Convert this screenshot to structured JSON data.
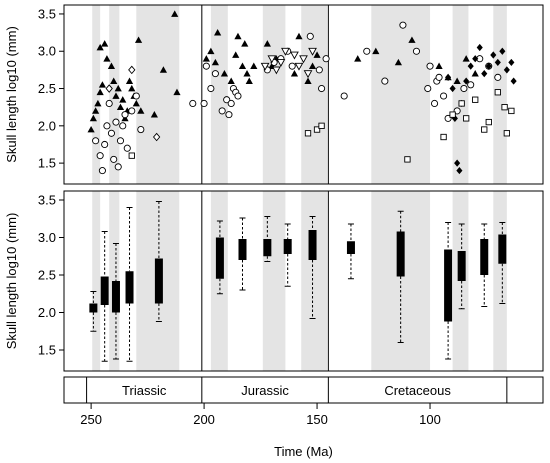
{
  "chart_data": [
    {
      "type": "scatter",
      "ylabel": "Skull length log10 (mm)",
      "xlim": [
        262,
        50
      ],
      "ylim": [
        1.22,
        3.62
      ],
      "yticks": [
        "1.5",
        "2.0",
        "2.5",
        "3.0",
        "3.5"
      ],
      "shaded_intervals": [
        [
          249.5,
          246
        ],
        [
          242,
          237.5
        ],
        [
          230,
          211
        ],
        [
          197,
          189.5
        ],
        [
          174,
          164
        ],
        [
          157,
          145.5
        ],
        [
          126,
          100
        ],
        [
          90,
          83
        ],
        [
          72,
          66
        ]
      ],
      "series": [
        {
          "symbol": "triangle",
          "points": [
            [
              250,
              1.95
            ],
            [
              249,
              2.1
            ],
            [
              248,
              2.2
            ],
            [
              247,
              2.3
            ],
            [
              246,
              2.45
            ],
            [
              245,
              2.55
            ],
            [
              246,
              3.05
            ],
            [
              244,
              3.1
            ],
            [
              243,
              2.9
            ],
            [
              241,
              2.8
            ],
            [
              240,
              2.6
            ],
            [
              239,
              2.4
            ],
            [
              238,
              2.5
            ],
            [
              237,
              2.25
            ],
            [
              236,
              2.35
            ],
            [
              235,
              2.1
            ],
            [
              234,
              2.2
            ],
            [
              233,
              2.6
            ],
            [
              232,
              2.5
            ],
            [
              231,
              2.4
            ],
            [
              230,
              2.3
            ],
            [
              229,
              3.15
            ],
            [
              228,
              2.2
            ],
            [
              222,
              2.15
            ],
            [
              218,
              2.75
            ],
            [
              213,
              3.5
            ],
            [
              212,
              2.45
            ],
            [
              199,
              2.9
            ],
            [
              197,
              3.0
            ],
            [
              195,
              2.85
            ],
            [
              194,
              3.25
            ],
            [
              191,
              2.7
            ],
            [
              188,
              2.6
            ],
            [
              186,
              2.95
            ],
            [
              185,
              3.2
            ],
            [
              183,
              2.8
            ],
            [
              182,
              3.1
            ],
            [
              181,
              2.7
            ],
            [
              180,
              2.6
            ],
            [
              178,
              2.8
            ],
            [
              172,
              3.1
            ],
            [
              170,
              2.8
            ],
            [
              168,
              2.9
            ],
            [
              160,
              2.7
            ],
            [
              158,
              3.2
            ],
            [
              154,
              2.6
            ],
            [
              152,
              2.8
            ],
            [
              150,
              2.95
            ],
            [
              132,
              2.9
            ],
            [
              124,
              3.0
            ],
            [
              114,
              2.85
            ],
            [
              108,
              3.15
            ],
            [
              96,
              2.8
            ],
            [
              92,
              2.65
            ],
            [
              88,
              2.6
            ],
            [
              84,
              2.9
            ],
            [
              80,
              2.7
            ]
          ]
        },
        {
          "symbol": "circle",
          "points": [
            [
              248,
              1.8
            ],
            [
              246,
              1.6
            ],
            [
              245,
              1.4
            ],
            [
              244,
              1.75
            ],
            [
              243,
              2.0
            ],
            [
              242,
              2.3
            ],
            [
              241,
              1.9
            ],
            [
              240,
              1.55
            ],
            [
              239,
              2.05
            ],
            [
              238,
              1.45
            ],
            [
              237,
              1.8
            ],
            [
              236,
              2.0
            ],
            [
              235,
              2.15
            ],
            [
              234,
              1.7
            ],
            [
              232,
              2.2
            ],
            [
              230,
              2.4
            ],
            [
              228,
              1.95
            ],
            [
              205,
              2.3
            ],
            [
              200,
              2.3
            ],
            [
              199,
              2.8
            ],
            [
              197,
              2.5
            ],
            [
              195,
              2.7
            ],
            [
              192,
              2.2
            ],
            [
              190,
              2.35
            ],
            [
              189,
              2.15
            ],
            [
              188,
              2.3
            ],
            [
              187,
              2.5
            ],
            [
              186,
              2.45
            ],
            [
              185,
              2.4
            ],
            [
              172,
              2.75
            ],
            [
              169,
              2.85
            ],
            [
              166,
              2.9
            ],
            [
              163,
              3.0
            ],
            [
              161,
              2.8
            ],
            [
              153,
              3.2
            ],
            [
              149,
              2.75
            ],
            [
              148,
              2.5
            ],
            [
              146,
              2.9
            ],
            [
              138,
              2.4
            ],
            [
              128,
              3.0
            ],
            [
              120,
              2.6
            ],
            [
              112,
              3.35
            ],
            [
              106,
              3.0
            ],
            [
              101,
              2.5
            ],
            [
              100,
              2.8
            ],
            [
              98,
              2.3
            ],
            [
              97,
              2.6
            ],
            [
              96,
              2.65
            ],
            [
              94,
              2.4
            ],
            [
              92,
              2.1
            ],
            [
              88,
              2.2
            ],
            [
              85,
              2.5
            ],
            [
              82,
              2.55
            ],
            [
              78,
              2.9
            ],
            [
              74,
              2.8
            ],
            [
              70,
              2.65
            ]
          ]
        },
        {
          "symbol": "triangle-down",
          "points": [
            [
              173,
              2.8
            ],
            [
              170,
              2.9
            ],
            [
              168,
              2.75
            ],
            [
              166,
              2.85
            ],
            [
              164,
              3.0
            ],
            [
              160,
              2.95
            ],
            [
              158,
              2.8
            ],
            [
              156,
              2.9
            ],
            [
              154,
              2.7
            ],
            [
              152,
              3.0
            ]
          ]
        },
        {
          "symbol": "diamond-filled",
          "points": [
            [
              92,
              2.65
            ],
            [
              90,
              2.5
            ],
            [
              89,
              2.1
            ],
            [
              88,
              1.5
            ],
            [
              87,
              1.4
            ],
            [
              86,
              2.3
            ],
            [
              84,
              2.6
            ],
            [
              82,
              2.8
            ],
            [
              80,
              2.9
            ],
            [
              78,
              3.05
            ],
            [
              76,
              2.7
            ],
            [
              74,
              2.8
            ],
            [
              72,
              2.95
            ],
            [
              70,
              2.85
            ],
            [
              68,
              3.0
            ],
            [
              66,
              2.75
            ],
            [
              64,
              2.85
            ],
            [
              63,
              2.6
            ]
          ]
        },
        {
          "symbol": "diamond",
          "points": [
            [
              242,
              2.5
            ],
            [
              232,
              2.75
            ],
            [
              221,
              1.85
            ]
          ]
        },
        {
          "symbol": "square",
          "points": [
            [
              232,
              1.6
            ],
            [
              154,
              1.9
            ],
            [
              150,
              1.95
            ],
            [
              148,
              2.0
            ],
            [
              110,
              1.55
            ],
            [
              94,
              1.85
            ],
            [
              90,
              2.15
            ],
            [
              86,
              2.3
            ],
            [
              84,
              2.1
            ],
            [
              80,
              2.35
            ],
            [
              76,
              1.95
            ],
            [
              74,
              2.05
            ],
            [
              70,
              2.45
            ],
            [
              67,
              2.25
            ],
            [
              66,
              1.9
            ],
            [
              64,
              2.2
            ]
          ]
        }
      ]
    },
    {
      "type": "box",
      "ylabel": "Skull length log10 (mm)",
      "xlim": [
        262,
        50
      ],
      "ylim": [
        1.22,
        3.62
      ],
      "yticks": [
        "1.5",
        "2.0",
        "2.5",
        "3.0",
        "3.5"
      ],
      "shaded_intervals": [
        [
          249.5,
          246
        ],
        [
          242,
          237.5
        ],
        [
          230,
          211
        ],
        [
          197,
          189.5
        ],
        [
          174,
          164
        ],
        [
          157,
          145.5
        ],
        [
          126,
          100
        ],
        [
          90,
          83
        ],
        [
          72,
          66
        ]
      ],
      "boxes": [
        {
          "x": 249,
          "min": 1.75,
          "q1": 2.0,
          "q3": 2.12,
          "max": 2.28
        },
        {
          "x": 244,
          "min": 1.35,
          "q1": 2.1,
          "q3": 2.48,
          "max": 3.08
        },
        {
          "x": 239,
          "min": 1.38,
          "q1": 2.0,
          "q3": 2.42,
          "max": 2.92
        },
        {
          "x": 233,
          "min": 1.35,
          "q1": 2.12,
          "q3": 2.55,
          "max": 3.4
        },
        {
          "x": 220,
          "min": 1.88,
          "q1": 2.12,
          "q3": 2.72,
          "max": 3.48
        },
        {
          "x": 193,
          "min": 2.25,
          "q1": 2.45,
          "q3": 3.0,
          "max": 3.22
        },
        {
          "x": 183,
          "min": 2.3,
          "q1": 2.7,
          "q3": 2.98,
          "max": 3.26
        },
        {
          "x": 172,
          "min": 2.68,
          "q1": 2.75,
          "q3": 2.98,
          "max": 3.28
        },
        {
          "x": 163,
          "min": 2.35,
          "q1": 2.78,
          "q3": 2.98,
          "max": 3.18
        },
        {
          "x": 152,
          "min": 1.92,
          "q1": 2.7,
          "q3": 3.1,
          "max": 3.28
        },
        {
          "x": 135,
          "min": 2.45,
          "q1": 2.78,
          "q3": 2.95,
          "max": 3.18
        },
        {
          "x": 113,
          "min": 1.6,
          "q1": 2.48,
          "q3": 3.08,
          "max": 3.35
        },
        {
          "x": 92,
          "min": 1.38,
          "q1": 1.88,
          "q3": 2.84,
          "max": 3.2
        },
        {
          "x": 86,
          "min": 2.05,
          "q1": 2.42,
          "q3": 2.82,
          "max": 3.18
        },
        {
          "x": 76,
          "min": 2.08,
          "q1": 2.5,
          "q3": 2.98,
          "max": 3.18
        },
        {
          "x": 68,
          "min": 2.12,
          "q1": 2.65,
          "q3": 3.04,
          "max": 3.2
        }
      ]
    }
  ],
  "periods": [
    {
      "label": "Triassic",
      "start": 252,
      "end": 201
    },
    {
      "label": "Jurassic",
      "start": 201,
      "end": 145
    },
    {
      "label": "Cretaceous",
      "start": 145,
      "end": 66
    }
  ],
  "boundaries": [
    201,
    145
  ],
  "xaxis": {
    "label": "Time (Ma)",
    "ticks": [
      250,
      200,
      150,
      100
    ],
    "tick_labels": [
      "250",
      "200",
      "150",
      "100"
    ]
  }
}
